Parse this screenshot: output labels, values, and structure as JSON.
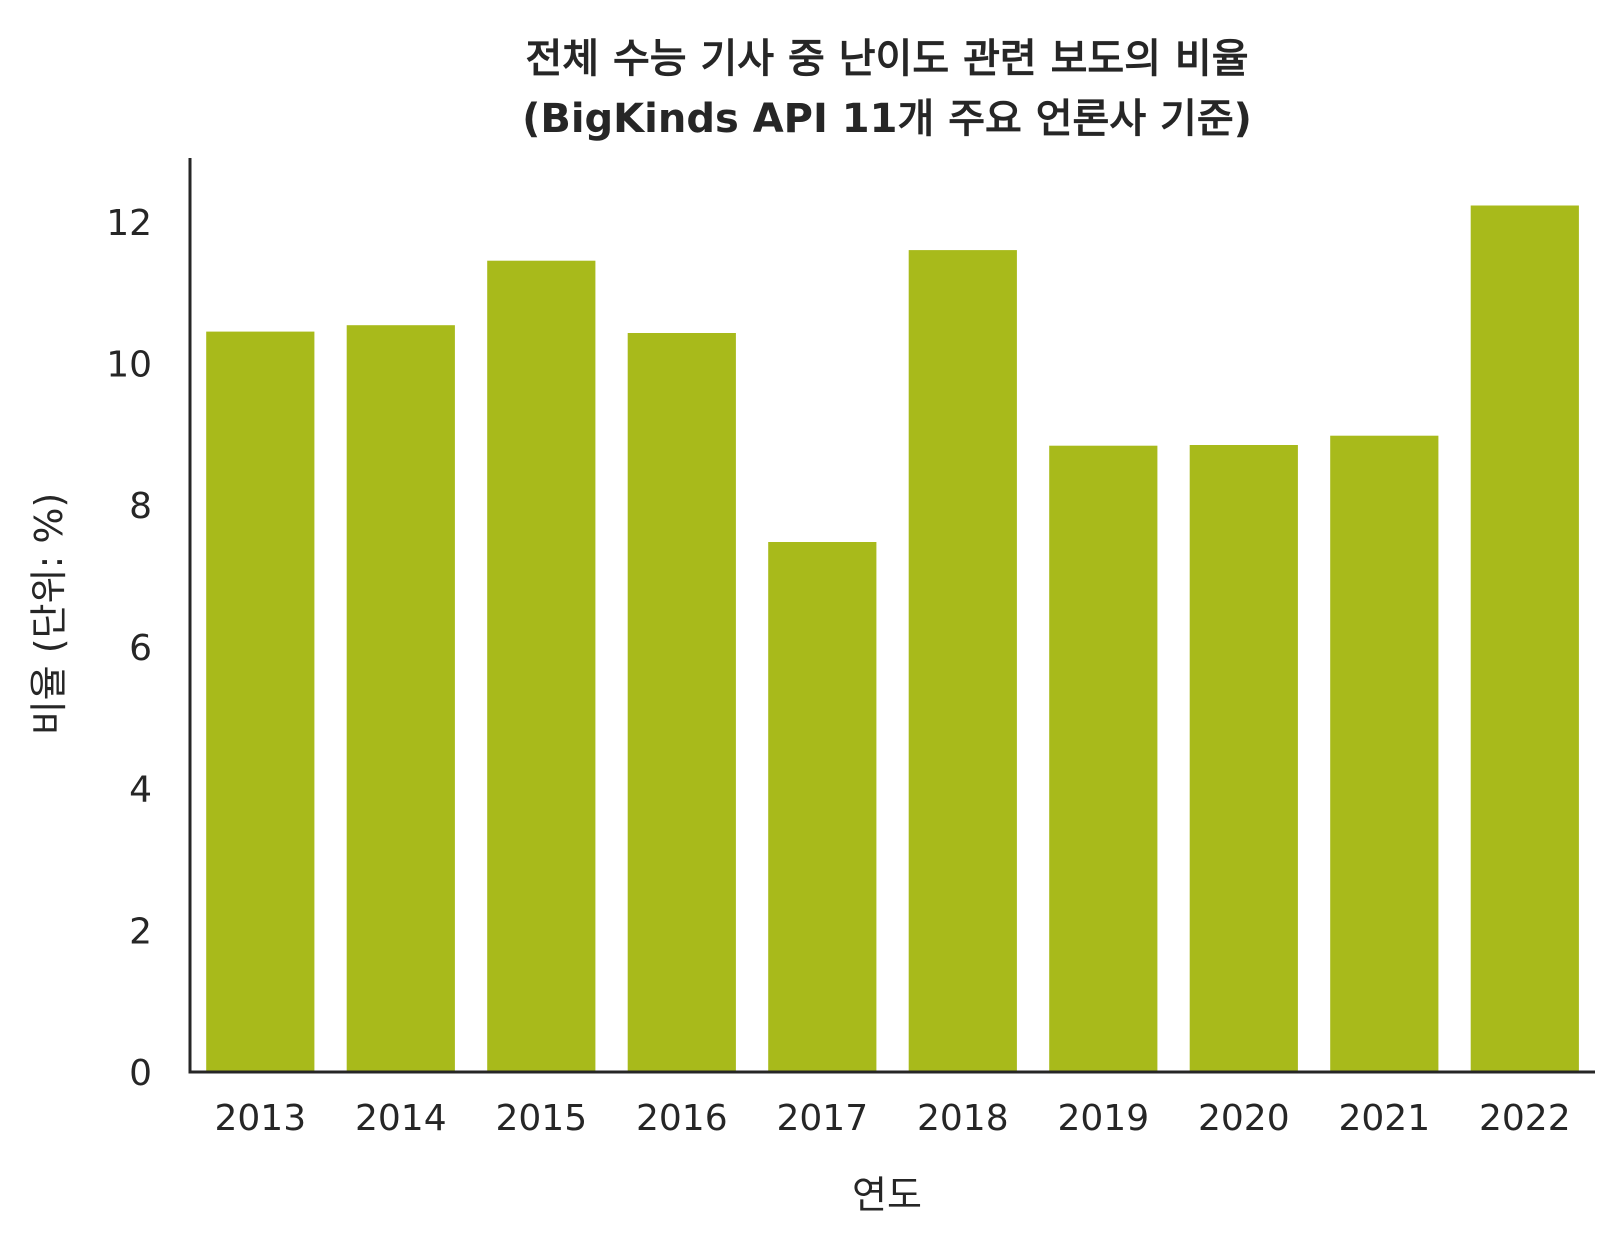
{
  "chart_data": {
    "type": "bar",
    "title_line1": "전체 수능 기사 중 난이도 관련 보도의 비율",
    "title_line2": "(BigKinds API 11개 주요 언론사 기준)",
    "xlabel": "연도",
    "ylabel": "비율 (단위: %)",
    "categories": [
      "2013",
      "2014",
      "2015",
      "2016",
      "2017",
      "2018",
      "2019",
      "2020",
      "2021",
      "2022"
    ],
    "values": [
      10.45,
      10.54,
      11.45,
      10.43,
      7.48,
      11.6,
      8.84,
      8.85,
      8.98,
      12.23
    ],
    "ylim": [
      0,
      12.9
    ],
    "yticks": [
      0,
      2,
      4,
      6,
      8,
      10,
      12
    ],
    "grid": false,
    "bar_color": "#a8ba1b",
    "axis_color": "#262626"
  }
}
